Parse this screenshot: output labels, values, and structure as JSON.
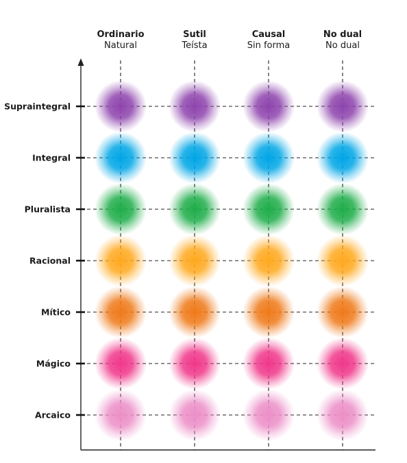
{
  "columns": [
    {
      "title": "Ordinario",
      "subtitle": "Natural"
    },
    {
      "title": "Sutil",
      "subtitle": "Teísta"
    },
    {
      "title": "Causal",
      "subtitle": "Sin forma"
    },
    {
      "title": "No dual",
      "subtitle": "No dual"
    }
  ],
  "rows": [
    {
      "label": "Supraintegral",
      "color": "#8e44ad"
    },
    {
      "label": "Integral",
      "color": "#00a6e6"
    },
    {
      "label": "Pluralista",
      "color": "#1fad4a"
    },
    {
      "label": "Racional",
      "color": "#ffa91f"
    },
    {
      "label": "Mítico",
      "color": "#ef7a1a"
    },
    {
      "label": "Mágico",
      "color": "#f0388a"
    },
    {
      "label": "Arcaico",
      "color": "#ec8fc8"
    }
  ]
}
